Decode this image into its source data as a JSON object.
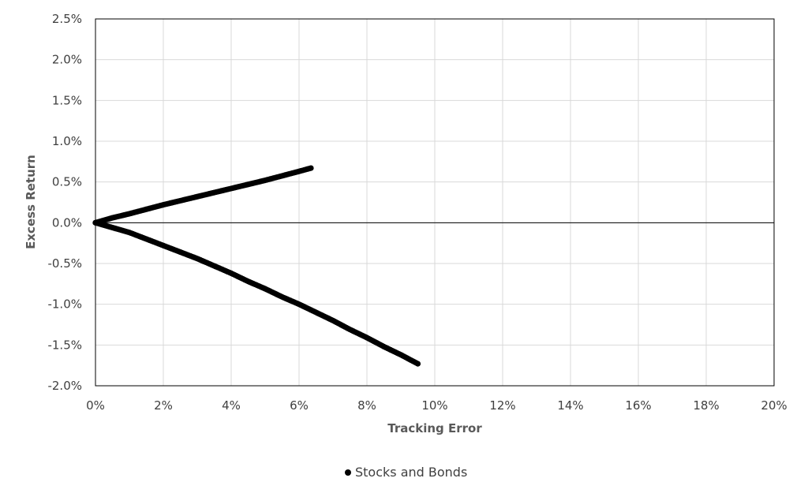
{
  "chart_data": {
    "type": "scatter",
    "title": "",
    "xlabel": "Tracking Error",
    "ylabel": "Excess Return",
    "xlim": [
      0,
      20
    ],
    "ylim": [
      -2.0,
      2.5
    ],
    "x_ticks": [
      "0%",
      "2%",
      "4%",
      "6%",
      "8%",
      "10%",
      "12%",
      "14%",
      "16%",
      "18%",
      "20%"
    ],
    "y_ticks": [
      "2.5%",
      "2.0%",
      "1.5%",
      "1.0%",
      "0.5%",
      "0.0%",
      "-0.5%",
      "-1.0%",
      "-1.5%",
      "-2.0%"
    ],
    "grid": true,
    "legend_position": "bottom",
    "series": [
      {
        "name": "Stocks and Bonds",
        "color": "#000000",
        "marker": "circle",
        "upper_branch": {
          "x": [
            0,
            0.5,
            1,
            1.5,
            2,
            2.5,
            3,
            3.5,
            4,
            4.5,
            5,
            5.5,
            6,
            6.35
          ],
          "y": [
            0,
            0.06,
            0.11,
            0.165,
            0.22,
            0.27,
            0.32,
            0.37,
            0.42,
            0.47,
            0.52,
            0.575,
            0.63,
            0.67
          ]
        },
        "lower_branch": {
          "x": [
            0,
            0.5,
            1,
            1.5,
            2,
            2.5,
            3,
            3.5,
            4,
            4.5,
            5,
            5.5,
            6,
            6.5,
            7,
            7.5,
            8,
            8.5,
            9,
            9.5
          ],
          "y": [
            0,
            -0.06,
            -0.12,
            -0.2,
            -0.28,
            -0.36,
            -0.44,
            -0.53,
            -0.62,
            -0.72,
            -0.81,
            -0.91,
            -1.0,
            -1.1,
            -1.2,
            -1.31,
            -1.41,
            -1.52,
            -1.62,
            -1.73
          ]
        }
      }
    ]
  }
}
